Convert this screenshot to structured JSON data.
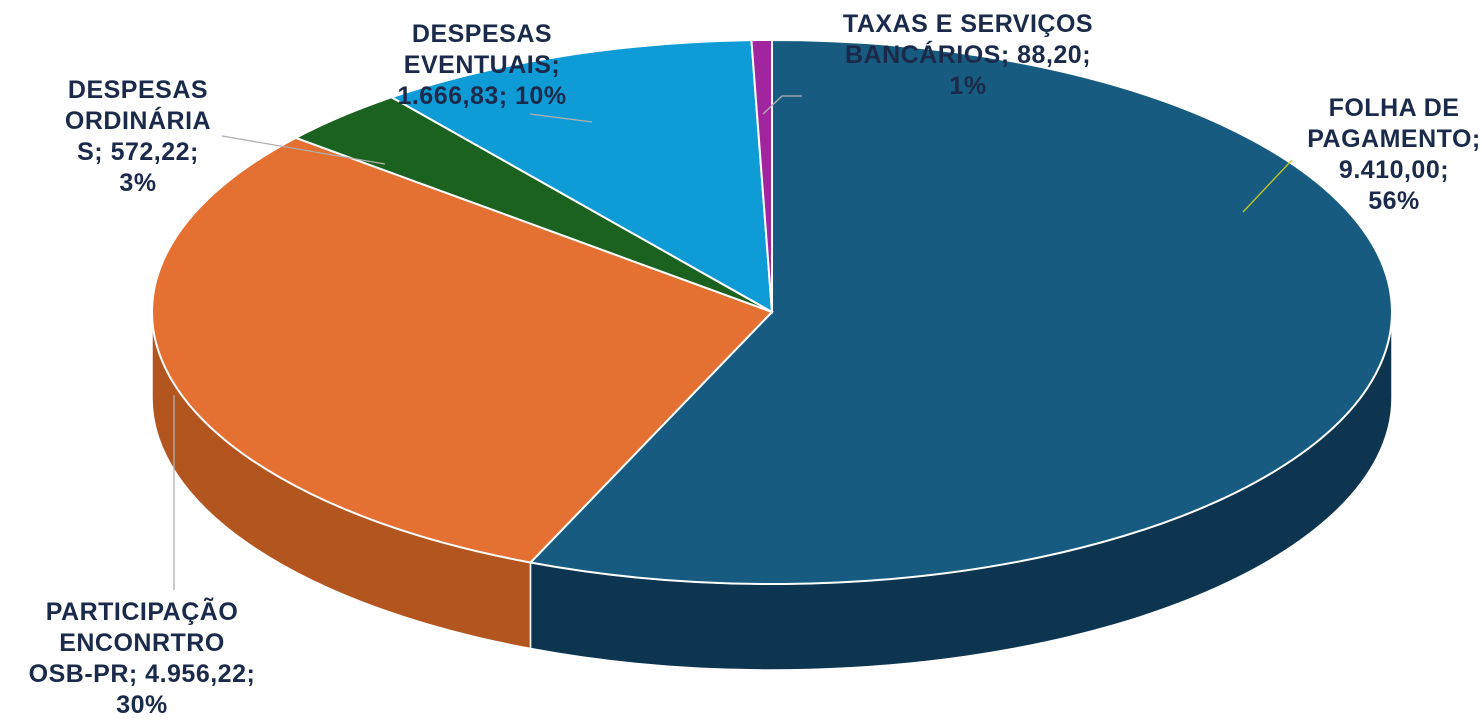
{
  "chart_data": {
    "type": "pie",
    "style": "3d",
    "title": "",
    "legend": "none",
    "data_labels": "category; value; percent",
    "slices": [
      {
        "name": "FOLHA DE PAGAMENTO",
        "value": 9410.0,
        "value_label": "9.410,00",
        "percent": 56,
        "color": "#175c80",
        "side_color": "#0e3550",
        "label_lines": [
          "FOLHA DE",
          "PAGAMENTO;",
          "9.410,00;",
          "56%"
        ]
      },
      {
        "name": "PARTICIPAÇÃO ENCONRTRO OSB-PR",
        "value": 4956.22,
        "value_label": "4.956,22",
        "percent": 30,
        "color": "#e47032",
        "side_color": "#b3551f",
        "label_lines": [
          "PARTICIPAÇÃO",
          "ENCONRTRO",
          "OSB-PR; 4.956,22;",
          "30%"
        ]
      },
      {
        "name": "DESPESAS ORDINÁRIAS",
        "value": 572.22,
        "value_label": "572,22",
        "percent": 3,
        "color": "#1b6220",
        "side_color": "#124215",
        "label_lines": [
          "DESPESAS",
          "ORDINÁRIA",
          "S; 572,22;",
          "3%"
        ]
      },
      {
        "name": "DESPESAS EVENTUAIS",
        "value": 1666.83,
        "value_label": "1.666,83",
        "percent": 10,
        "color": "#0f9bd5",
        "side_color": "#0b6f99",
        "label_lines": [
          "DESPESAS",
          "EVENTUAIS;",
          "1.666,83; 10%"
        ]
      },
      {
        "name": "TAXAS E SERVIÇOS BANCÁRIOS",
        "value": 88.2,
        "value_label": "88,20",
        "percent": 1,
        "color": "#a0259e",
        "side_color": "#6e1a6c",
        "label_lines": [
          "TAXAS E SERVIÇOS",
          "BANCÁRIOS; 88,20;",
          "1%"
        ]
      }
    ]
  }
}
